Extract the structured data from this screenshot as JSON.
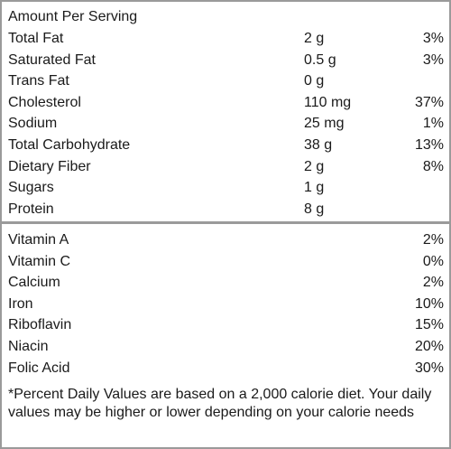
{
  "header": {
    "title": "Amount Per Serving"
  },
  "nutrients": [
    {
      "name": "Total Fat",
      "amount": "2 g",
      "dv": "3%"
    },
    {
      "name": "Saturated Fat",
      "amount": "0.5 g",
      "dv": "3%"
    },
    {
      "name": "Trans Fat",
      "amount": "0 g",
      "dv": null
    },
    {
      "name": "Cholesterol",
      "amount": "110 mg",
      "dv": "37%"
    },
    {
      "name": "Sodium",
      "amount": "25 mg",
      "dv": "1%"
    },
    {
      "name": "Total Carbohydrate",
      "amount": "38 g",
      "dv": "13%"
    },
    {
      "name": "Dietary Fiber",
      "amount": "2 g",
      "dv": "8%"
    },
    {
      "name": "Sugars",
      "amount": "1 g",
      "dv": null
    },
    {
      "name": "Protein",
      "amount": "8 g",
      "dv": null
    }
  ],
  "vitamins": [
    {
      "name": "Vitamin A",
      "dv": "2%"
    },
    {
      "name": "Vitamin C",
      "dv": "0%"
    },
    {
      "name": "Calcium",
      "dv": "2%"
    },
    {
      "name": "Iron",
      "dv": "10%"
    },
    {
      "name": "Riboflavin",
      "dv": "15%"
    },
    {
      "name": "Niacin",
      "dv": "20%"
    },
    {
      "name": "Folic Acid",
      "dv": "30%"
    }
  ],
  "footnote": "*Percent Daily Values are based on a 2,000 calorie diet. Your daily values may be higher or lower depending on your calorie needs"
}
